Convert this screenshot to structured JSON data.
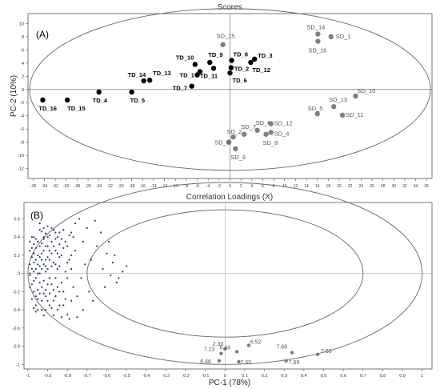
{
  "chart_data": [
    {
      "type": "scatter",
      "panel_label": "(A)",
      "title": "Scores",
      "ylabel": "PC-2 (10%)",
      "xlabel": "",
      "xlim": [
        -37,
        37
      ],
      "ylim": [
        -13.5,
        11.5
      ],
      "x_ticks": [
        "-36",
        "-34",
        "-32",
        "-30",
        "-28",
        "-26",
        "-24",
        "-22",
        "-20",
        "-18",
        "-16",
        "-14",
        "-12",
        "-10",
        "-8",
        "-6",
        "-4",
        "-2",
        "0",
        "2",
        "4",
        "6",
        "8",
        "10",
        "12",
        "14",
        "16",
        "18",
        "20",
        "22",
        "24",
        "26",
        "28",
        "30",
        "32",
        "34",
        "36"
      ],
      "y_ticks": [
        "10",
        "8",
        "6",
        "4",
        "2",
        "0",
        "-2",
        "-4",
        "-6",
        "-8",
        "-10",
        "-12"
      ],
      "grid": false,
      "series": [
        {
          "color": "#000000",
          "points": [
            {
              "label": "TD_16",
              "x": -34.3,
              "y": -1.6
            },
            {
              "label": "TD_15",
              "x": -29.8,
              "y": -1.6
            },
            {
              "label": "TD_4",
              "x": -24.0,
              "y": -0.4
            },
            {
              "label": "TD_5",
              "x": -18.0,
              "y": -0.4
            },
            {
              "label": "TD_14",
              "x": -15.8,
              "y": 1.3
            },
            {
              "label": "TD_13",
              "x": -14.7,
              "y": 1.4
            },
            {
              "label": "TD_10",
              "x": -6.4,
              "y": 3.8
            },
            {
              "label": "TD_9",
              "x": -3.7,
              "y": 4.1
            },
            {
              "label": "TD_1",
              "x": -6.0,
              "y": 2.2
            },
            {
              "label": "TD_11",
              "x": -5.5,
              "y": 2.7
            },
            {
              "label": "TD_7",
              "x": -7.0,
              "y": 0.5
            },
            {
              "label": "TD_8",
              "x": 0.3,
              "y": 4.4
            },
            {
              "label": "TD_2",
              "x": 0.2,
              "y": 3.3
            },
            {
              "label": "TD_6",
              "x": 0.0,
              "y": 2.5
            },
            {
              "label": "TD_3",
              "x": 4.5,
              "y": 4.6
            },
            {
              "label": "TD_12",
              "x": 3.8,
              "y": 4.1
            },
            {
              "label": "",
              "x": -3.0,
              "y": 3.2
            }
          ]
        },
        {
          "color": "#7f7f7f",
          "points": [
            {
              "label": "SD_15",
              "x": -1.3,
              "y": 6.8
            },
            {
              "label": "SD_14",
              "x": 16.1,
              "y": 8.4
            },
            {
              "label": "SD_1",
              "x": 18.5,
              "y": 8.0
            },
            {
              "label": "SD_16",
              "x": 16.1,
              "y": 7.3
            },
            {
              "label": "SD_10",
              "x": 23.0,
              "y": -1.0
            },
            {
              "label": "SD_13",
              "x": 19.0,
              "y": -2.6
            },
            {
              "label": "SD_5",
              "x": 16.0,
              "y": -3.7
            },
            {
              "label": "SD_11",
              "x": 20.6,
              "y": -3.9
            },
            {
              "label": "SD_6",
              "x": 5.0,
              "y": -6.2
            },
            {
              "label": "SD_12",
              "x": 7.5,
              "y": -5.2
            },
            {
              "label": "SD_7",
              "x": 2.6,
              "y": -6.8
            },
            {
              "label": "SD_2",
              "x": 0.6,
              "y": -7.2
            },
            {
              "label": "SD_4",
              "x": 7.5,
              "y": -6.5
            },
            {
              "label": "SD_8",
              "x": 6.6,
              "y": -6.8
            },
            {
              "label": "SD_3",
              "x": -0.2,
              "y": -8.0
            },
            {
              "label": "SD_9",
              "x": 1.0,
              "y": -9.0
            }
          ]
        }
      ]
    },
    {
      "type": "scatter",
      "panel_label": "(B)",
      "title": "Correlation Loadings (X)",
      "xlabel": "PC-1 (78%)",
      "ylabel": "",
      "xlim": [
        -1.02,
        1.05
      ],
      "ylim": [
        -1.05,
        0.78
      ],
      "x_ticks": [
        "-1",
        "-0.9",
        "-0.8",
        "-0.7",
        "-0.6",
        "-0.5",
        "-0.4",
        "-0.3",
        "-0.2",
        "-0.1",
        "0",
        "0.1",
        "0.2",
        "0.3",
        "0.4",
        "0.5",
        "0.6",
        "0.7",
        "0.8",
        "0.9",
        "1"
      ],
      "y_ticks": [
        "0.6",
        "0.4",
        "0.2",
        "0",
        "-0.2",
        "-0.4",
        "-0.6",
        "-0.8",
        "-1"
      ],
      "grid": false,
      "labeled_points": [
        {
          "label": "2.30",
          "x": 0.0,
          "y": -0.83
        },
        {
          "label": "6.52",
          "x": 0.12,
          "y": -0.79
        },
        {
          "label": "7.23",
          "x": -0.02,
          "y": -0.88
        },
        {
          "label": "6.44",
          "x": 0.06,
          "y": -0.86
        },
        {
          "label": "7.68",
          "x": 0.34,
          "y": -0.87
        },
        {
          "label": "7.66",
          "x": 0.47,
          "y": -0.89
        },
        {
          "label": "6.46",
          "x": -0.03,
          "y": -0.96
        },
        {
          "label": "7.65",
          "x": 0.07,
          "y": -0.97
        },
        {
          "label": "7.69",
          "x": 0.31,
          "y": -0.96
        }
      ],
      "cluster_points": [
        [
          -0.98,
          0.05
        ],
        [
          -0.97,
          0.12
        ],
        [
          -0.96,
          -0.05
        ],
        [
          -0.95,
          0.2
        ],
        [
          -0.94,
          0.3
        ],
        [
          -0.93,
          -0.15
        ],
        [
          -0.92,
          0.38
        ],
        [
          -0.91,
          0.02
        ],
        [
          -0.99,
          -0.02
        ],
        [
          -0.98,
          0.18
        ],
        [
          -0.97,
          -0.2
        ],
        [
          -0.96,
          0.28
        ],
        [
          -0.95,
          -0.28
        ],
        [
          -0.94,
          0.08
        ],
        [
          -0.93,
          0.22
        ],
        [
          -0.92,
          -0.08
        ],
        [
          -0.91,
          0.44
        ],
        [
          -0.9,
          -0.3
        ],
        [
          -0.89,
          0.15
        ],
        [
          -0.88,
          0.35
        ],
        [
          -0.87,
          -0.18
        ],
        [
          -0.86,
          0.25
        ],
        [
          -0.85,
          0.05
        ],
        [
          -0.84,
          -0.35
        ],
        [
          -0.99,
          0.1
        ],
        [
          -0.98,
          -0.12
        ],
        [
          -0.97,
          0.32
        ],
        [
          -0.96,
          0.15
        ],
        [
          -0.95,
          0.0
        ],
        [
          -0.94,
          -0.22
        ],
        [
          -0.93,
          0.46
        ],
        [
          -0.92,
          0.1
        ],
        [
          -0.91,
          -0.4
        ],
        [
          -0.9,
          0.3
        ],
        [
          -0.89,
          -0.05
        ],
        [
          -0.88,
          0.5
        ],
        [
          -0.87,
          0.12
        ],
        [
          -0.86,
          -0.25
        ],
        [
          -0.85,
          0.4
        ],
        [
          -0.84,
          0.18
        ],
        [
          -0.83,
          -0.1
        ],
        [
          -0.82,
          0.28
        ],
        [
          -0.81,
          0.02
        ],
        [
          -0.8,
          -0.45
        ],
        [
          -0.79,
          0.42
        ],
        [
          -0.78,
          0.2
        ],
        [
          -0.77,
          -0.15
        ],
        [
          -0.76,
          0.55
        ],
        [
          -0.99,
          0.25
        ],
        [
          -0.98,
          -0.28
        ],
        [
          -0.97,
          0.4
        ],
        [
          -0.96,
          -0.35
        ],
        [
          -0.95,
          0.35
        ],
        [
          -0.94,
          0.48
        ],
        [
          -0.93,
          -0.3
        ],
        [
          -0.92,
          0.25
        ],
        [
          -0.91,
          0.15
        ],
        [
          -0.9,
          0.05
        ],
        [
          -0.89,
          0.42
        ],
        [
          -0.88,
          -0.12
        ],
        [
          -0.87,
          0.3
        ],
        [
          -0.86,
          0.45
        ],
        [
          -0.85,
          -0.4
        ],
        [
          -0.84,
          0.32
        ],
        [
          -0.96,
          -0.42
        ],
        [
          -0.94,
          0.55
        ],
        [
          -0.92,
          -0.46
        ],
        [
          -0.9,
          0.52
        ],
        [
          -0.88,
          -0.38
        ],
        [
          -0.86,
          0.1
        ],
        [
          -0.84,
          -0.2
        ],
        [
          -0.82,
          0.48
        ],
        [
          -0.8,
          0.12
        ],
        [
          -0.78,
          -0.3
        ],
        [
          -0.76,
          0.25
        ],
        [
          -0.74,
          0.6
        ],
        [
          -0.73,
          -0.05
        ],
        [
          -0.72,
          0.35
        ],
        [
          -0.7,
          0.5
        ],
        [
          -0.69,
          -0.2
        ],
        [
          -0.68,
          0.15
        ],
        [
          -0.66,
          0.58
        ],
        [
          -0.65,
          0.3
        ],
        [
          -0.62,
          0.05
        ],
        [
          -0.6,
          0.22
        ],
        [
          -0.58,
          -0.02
        ],
        [
          -0.57,
          0.12
        ],
        [
          -0.55,
          -0.1
        ],
        [
          -0.52,
          0.02
        ],
        [
          -0.5,
          0.08
        ],
        [
          -0.72,
          -0.4
        ],
        [
          -0.75,
          -0.48
        ],
        [
          -0.79,
          -0.5
        ],
        [
          -0.83,
          -0.48
        ],
        [
          -0.87,
          -0.46
        ],
        [
          -0.91,
          -0.25
        ],
        [
          -0.97,
          -0.08
        ],
        [
          -0.95,
          0.1
        ],
        [
          -0.93,
          0.05
        ],
        [
          -0.91,
          0.3
        ],
        [
          -0.89,
          0.25
        ],
        [
          -0.99,
          0.35
        ],
        [
          -0.98,
          0.4
        ],
        [
          -0.97,
          -0.38
        ],
        [
          -0.95,
          -0.18
        ],
        [
          -0.93,
          0.33
        ],
        [
          -0.91,
          -0.18
        ],
        [
          -0.89,
          -0.22
        ],
        [
          -0.87,
          0.48
        ],
        [
          -0.85,
          0.22
        ],
        [
          -0.83,
          0.38
        ],
        [
          -0.81,
          -0.28
        ],
        [
          -0.99,
          -0.15
        ],
        [
          -0.98,
          0.28
        ],
        [
          -0.96,
          0.05
        ],
        [
          -0.94,
          -0.1
        ],
        [
          -0.92,
          0.4
        ],
        [
          -0.9,
          -0.12
        ],
        [
          -0.88,
          0.08
        ],
        [
          -0.86,
          -0.05
        ],
        [
          -0.84,
          0.45
        ],
        [
          -0.82,
          -0.35
        ],
        [
          -0.8,
          0.3
        ],
        [
          -0.78,
          0.05
        ],
        [
          -0.77,
          0.4
        ],
        [
          -0.75,
          -0.25
        ],
        [
          -0.71,
          0.1
        ],
        [
          -0.67,
          -0.3
        ],
        [
          -0.63,
          0.45
        ],
        [
          -0.61,
          -0.15
        ],
        [
          -0.59,
          0.35
        ],
        [
          -0.56,
          0.2
        ],
        [
          -0.54,
          -0.05
        ],
        [
          -0.99,
          0.0
        ],
        [
          -0.97,
          0.22
        ],
        [
          -0.96,
          -0.25
        ],
        [
          -0.94,
          0.18
        ],
        [
          -0.93,
          -0.4
        ],
        [
          -0.92,
          0.5
        ],
        [
          -0.9,
          0.18
        ],
        [
          -0.89,
          -0.35
        ],
        [
          -0.88,
          0.22
        ],
        [
          -0.87,
          -0.3
        ],
        [
          -0.86,
          0.38
        ],
        [
          -0.85,
          -0.15
        ],
        [
          -0.84,
          0.08
        ],
        [
          -0.83,
          0.2
        ],
        [
          -0.82,
          -0.2
        ],
        [
          -0.81,
          0.35
        ],
        [
          -0.8,
          -0.05
        ],
        [
          -0.79,
          0.15
        ],
        [
          -0.78,
          0.45
        ],
        [
          -0.97,
          0.02
        ],
        [
          -0.96,
          0.38
        ],
        [
          -0.95,
          -0.4
        ],
        [
          -0.94,
          0.0
        ],
        [
          -0.93,
          0.15
        ],
        [
          -0.92,
          -0.22
        ],
        [
          -0.91,
          0.08
        ],
        [
          -0.9,
          0.4
        ]
      ]
    }
  ]
}
